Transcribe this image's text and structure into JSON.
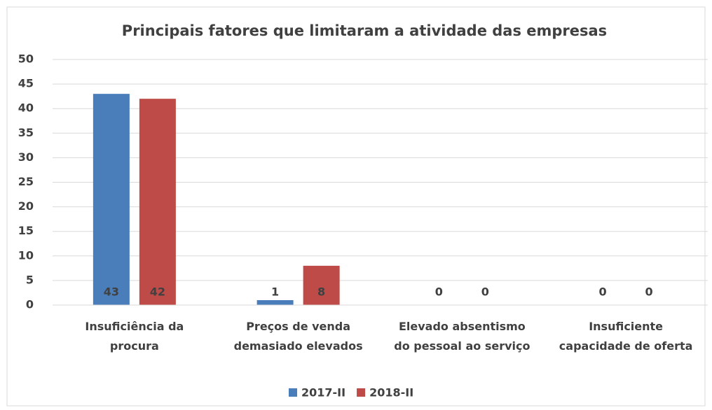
{
  "chart_data": {
    "type": "bar",
    "title": "Principais fatores que limitaram a atividade das empresas",
    "categories": [
      "Insuficiência da procura",
      "Preços de venda demasiado elevados",
      "Elevado absentismo do pessoal ao serviço",
      "Insuficiente capacidade de oferta"
    ],
    "series": [
      {
        "name": "2017-II",
        "color": "#4a7ebb",
        "values": [
          43,
          1,
          0,
          0
        ]
      },
      {
        "name": "2018-II",
        "color": "#be4b48",
        "values": [
          42,
          8,
          0,
          0
        ]
      }
    ],
    "ylim": [
      0,
      50
    ],
    "yticks": [
      0,
      5,
      10,
      15,
      20,
      25,
      30,
      35,
      40,
      45,
      50
    ],
    "grid": true,
    "legend": "bottom"
  }
}
